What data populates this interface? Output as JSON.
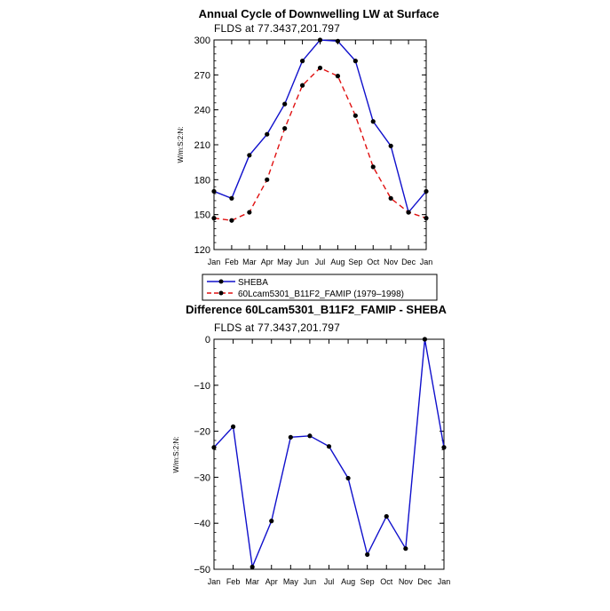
{
  "colors": {
    "sheba": "#1010cc",
    "model": "#e01010",
    "diff": "#1010cc",
    "marker": "#000000"
  },
  "chart_data": [
    {
      "type": "line",
      "title": "Annual Cycle of Downwelling LW at Surface",
      "subtitle": "FLDS at 77.3437,201.797",
      "ylabel": "W/m:S:2:N:",
      "xlabel": "",
      "categories": [
        "Jan",
        "Feb",
        "Mar",
        "Apr",
        "May",
        "Jun",
        "Jul",
        "Aug",
        "Sep",
        "Oct",
        "Nov",
        "Dec",
        "Jan"
      ],
      "ylim": [
        120,
        300
      ],
      "yticks": [
        120,
        150,
        180,
        210,
        240,
        270,
        300
      ],
      "legend": [
        "SHEBA",
        "60Lcam5301_B11F2_FAMIP (1979–1998)"
      ],
      "legend_position": "below",
      "series": [
        {
          "name": "SHEBA",
          "style": "solid",
          "values": [
            170,
            164,
            201,
            219,
            245,
            282,
            300,
            299,
            282,
            230,
            209,
            152,
            170
          ]
        },
        {
          "name": "60Lcam5301_B11F2_FAMIP (1979–1998)",
          "style": "dashed",
          "values": [
            147,
            145,
            152,
            180,
            224,
            261,
            276,
            269,
            235,
            191,
            164,
            152,
            147
          ]
        }
      ]
    },
    {
      "type": "line",
      "title": "Difference 60Lcam5301_B11F2_FAMIP - SHEBA",
      "subtitle": "FLDS at 77.3437,201.797",
      "ylabel": "W/m:S:2:N:",
      "xlabel": "",
      "categories": [
        "Jan",
        "Feb",
        "Mar",
        "Apr",
        "May",
        "Jun",
        "Jul",
        "Aug",
        "Sep",
        "Oct",
        "Nov",
        "Dec",
        "Jan"
      ],
      "ylim": [
        -50,
        0
      ],
      "yticks": [
        -50,
        -40,
        -30,
        -20,
        -10,
        0
      ],
      "ytick_labels": [
        "−50",
        "−40",
        "−30",
        "−20",
        "−10",
        "0"
      ],
      "series": [
        {
          "name": "",
          "style": "solid",
          "values": [
            -23.5,
            -19,
            -49.5,
            -39.5,
            -21.3,
            -21,
            -23.3,
            -30.2,
            -46.8,
            -38.5,
            -45.5,
            0,
            -23.5
          ]
        }
      ]
    }
  ]
}
